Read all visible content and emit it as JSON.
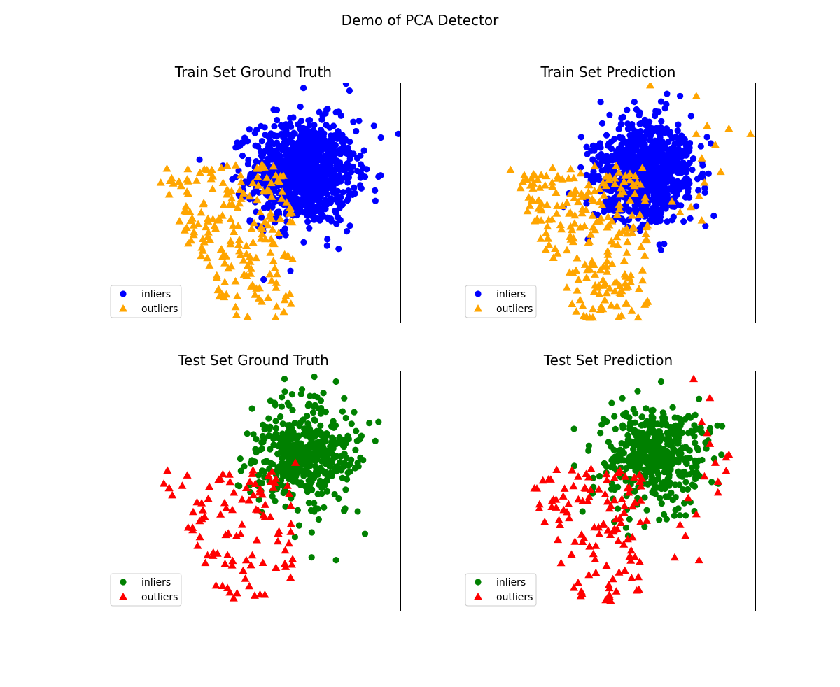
{
  "figure_title": "Demo of PCA Detector",
  "legend_labels": {
    "inliers": "inliers",
    "outliers": "outliers"
  },
  "chart_data": [
    {
      "type": "scatter",
      "title": "Train Set Ground Truth",
      "xlabel": "",
      "ylabel": "",
      "xlim": [
        -6.3,
        4.6
      ],
      "ylim": [
        -4.4,
        4.5
      ],
      "ticks": false,
      "legend_position": "lower-left",
      "series": [
        {
          "name": "inliers",
          "marker": "circle",
          "color": "#0000ff",
          "count": 1000,
          "center": [
            1.0,
            1.2
          ],
          "spread": [
            0.95,
            0.95
          ],
          "extra_points": [
            [
              4.5,
              2.6
            ],
            [
              3.6,
              2.9
            ],
            [
              2.2,
              3.4
            ],
            [
              2.7,
              4.2
            ],
            [
              1.0,
              4.3
            ],
            [
              -0.1,
              3.5
            ],
            [
              -1.5,
              2.1
            ],
            [
              2.6,
              -1.0
            ],
            [
              2.9,
              0.4
            ],
            [
              -0.3,
              0.0
            ]
          ]
        },
        {
          "name": "outliers",
          "marker": "triangle",
          "color": "#ffa500",
          "count": 200,
          "region": [
            [
              -4.6,
              1.4
            ],
            [
              -2.0,
              -4.2
            ],
            [
              0.6,
              -4.2
            ],
            [
              0.6,
              1.5
            ]
          ]
        }
      ]
    },
    {
      "type": "scatter",
      "title": "Train Set Prediction",
      "xlabel": "",
      "ylabel": "",
      "xlim": [
        -6.3,
        4.6
      ],
      "ylim": [
        -4.4,
        4.5
      ],
      "ticks": false,
      "legend_position": "lower-left",
      "series": [
        {
          "name": "inliers",
          "marker": "circle",
          "color": "#0000ff",
          "count": 960,
          "center": [
            0.6,
            1.2
          ],
          "spread": [
            0.85,
            0.9
          ],
          "extra_points": [
            [
              -2.5,
              -0.1
            ],
            [
              -2.3,
              0.4
            ],
            [
              -1.6,
              -1.3
            ],
            [
              -0.8,
              3.3
            ],
            [
              1.1,
              3.8
            ],
            [
              1.8,
              4.0
            ]
          ]
        },
        {
          "name": "outliers",
          "marker": "triangle",
          "color": "#ffa500",
          "count": 240,
          "region": [
            [
              -4.6,
              1.4
            ],
            [
              -2.0,
              -4.2
            ],
            [
              0.6,
              -4.2
            ],
            [
              0.6,
              1.5
            ]
          ],
          "extra_points": [
            [
              4.4,
              2.6
            ],
            [
              3.6,
              2.8
            ],
            [
              2.4,
              2.6
            ],
            [
              3.3,
              1.2
            ],
            [
              2.6,
              1.7
            ],
            [
              2.6,
              -0.6
            ],
            [
              2.2,
              -0.1
            ],
            [
              2.7,
              0.8
            ],
            [
              0.7,
              4.4
            ],
            [
              2.4,
              4.0
            ],
            [
              2.8,
              2.9
            ],
            [
              3.1,
              2.2
            ],
            [
              2.5,
              0.3
            ],
            [
              1.8,
              -0.3
            ],
            [
              1.5,
              0.1
            ]
          ]
        }
      ]
    },
    {
      "type": "scatter",
      "title": "Test Set Ground Truth",
      "xlabel": "",
      "ylabel": "",
      "xlim": [
        -6.3,
        4.6
      ],
      "ylim": [
        -4.4,
        4.5
      ],
      "ticks": false,
      "legend_position": "lower-left",
      "series": [
        {
          "name": "inliers",
          "marker": "circle",
          "color": "#008000",
          "count": 500,
          "center": [
            1.0,
            1.4
          ],
          "spread": [
            0.95,
            0.95
          ],
          "extra_points": [
            [
              3.0,
              -0.7
            ],
            [
              2.2,
              -2.5
            ],
            [
              1.3,
              -2.4
            ],
            [
              -0.9,
              3.1
            ],
            [
              0.3,
              4.2
            ],
            [
              2.2,
              4.1
            ],
            [
              3.2,
              1.2
            ],
            [
              -0.5,
              2.5
            ]
          ]
        },
        {
          "name": "outliers",
          "marker": "triangle",
          "color": "#ff0000",
          "count": 100,
          "region": [
            [
              -4.5,
              0.9
            ],
            [
              -2.0,
              -4.0
            ],
            [
              0.6,
              -4.0
            ],
            [
              0.6,
              0.9
            ]
          ],
          "extra_points": [
            [
              0.7,
              1.1
            ],
            [
              -0.2,
              0.4
            ]
          ]
        }
      ]
    },
    {
      "type": "scatter",
      "title": "Test Set Prediction",
      "xlabel": "",
      "ylabel": "",
      "xlim": [
        -6.3,
        4.6
      ],
      "ylim": [
        -4.4,
        4.5
      ],
      "ticks": false,
      "legend_position": "lower-left",
      "series": [
        {
          "name": "inliers",
          "marker": "circle",
          "color": "#008000",
          "count": 480,
          "center": [
            0.8,
            1.4
          ],
          "spread": [
            0.85,
            0.9
          ],
          "extra_points": [
            [
              -1.8,
              -0.7
            ],
            [
              -0.5,
              -0.6
            ],
            [
              -1.4,
              0.2
            ],
            [
              -0.2,
              2.9
            ],
            [
              1.1,
              4.1
            ],
            [
              -0.5,
              0.2
            ]
          ]
        },
        {
          "name": "outliers",
          "marker": "triangle",
          "color": "#ff0000",
          "count": 120,
          "region": [
            [
              -4.5,
              0.9
            ],
            [
              -2.0,
              -4.0
            ],
            [
              0.6,
              -4.0
            ],
            [
              0.6,
              0.9
            ]
          ],
          "extra_points": [
            [
              2.3,
              4.2
            ],
            [
              2.9,
              3.5
            ],
            [
              3.5,
              0.8
            ],
            [
              3.2,
              0.4
            ],
            [
              2.9,
              1.8
            ],
            [
              3.5,
              1.3
            ],
            [
              2.6,
              2.6
            ],
            [
              3.6,
              1.4
            ],
            [
              3.2,
              0.0
            ],
            [
              2.7,
              0.6
            ],
            [
              2.1,
              -0.2
            ],
            [
              2.4,
              -0.8
            ],
            [
              2.5,
              -2.5
            ],
            [
              1.6,
              -2.4
            ],
            [
              2.0,
              -1.6
            ],
            [
              1.8,
              -1.2
            ],
            [
              3.1,
              1.1
            ],
            [
              2.8,
              2.2
            ]
          ]
        }
      ]
    }
  ]
}
